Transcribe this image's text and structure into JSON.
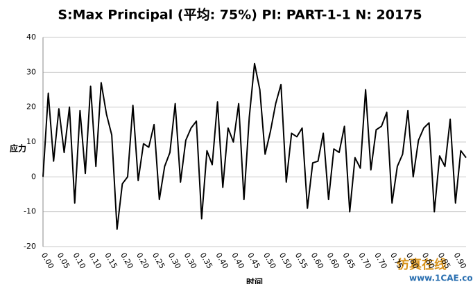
{
  "chart_data": {
    "type": "line",
    "title": "S:Max Principal (平均: 75%) PI: PART-1-1 N: 20175",
    "y_label": "应力",
    "x_label": "时间",
    "watermark": [
      "仿真在线",
      "www.1CAE.com"
    ],
    "categories": [
      "0.00",
      null,
      null,
      "0.05",
      null,
      null,
      "0.10",
      null,
      null,
      "0.10",
      null,
      null,
      "0.15",
      null,
      null,
      "0.20",
      null,
      null,
      "0.20",
      null,
      null,
      "0.25",
      null,
      null,
      "0.30",
      null,
      null,
      "0.30",
      null,
      null,
      "0.35",
      null,
      null,
      "0.40",
      null,
      null,
      "0.40",
      null,
      null,
      "0.45",
      null,
      null,
      "0.50",
      null,
      null,
      "0.50",
      null,
      null,
      "0.55",
      null,
      null,
      "0.60",
      null,
      null,
      "0.60",
      null,
      null,
      "0.65",
      null,
      null,
      "0.70",
      null,
      null,
      "0.70",
      null,
      null,
      "0.75",
      null,
      null,
      "0.80",
      null,
      null,
      "0.80",
      null,
      null,
      "0.85",
      null,
      null,
      "0.90",
      null,
      null
    ],
    "series": [
      {
        "color": "#000000",
        "values": [
          0,
          24,
          4.5,
          19.5,
          7,
          20,
          -7.5,
          19,
          1,
          26,
          3,
          27,
          18,
          12,
          -15,
          -2,
          0,
          20.5,
          -1,
          9.5,
          8.5,
          15,
          -6.5,
          3,
          7,
          21,
          -1.5,
          10.5,
          14,
          16,
          -12,
          7.5,
          3.5,
          21.5,
          -3,
          14,
          10,
          21,
          -6.5,
          17,
          32.5,
          25,
          6.5,
          13,
          21,
          26.5,
          -1.5,
          12.5,
          11.5,
          14,
          -9,
          4,
          4.5,
          12.5,
          -6.5,
          8,
          7,
          14.5,
          -10,
          5.5,
          2.5,
          25,
          2,
          13.5,
          14.5,
          18.5,
          -7.5,
          3,
          6.5,
          19,
          0,
          10.5,
          14,
          15.5,
          -10,
          6,
          3,
          16.5,
          -7.5,
          7.5,
          5.5
        ]
      }
    ],
    "ylim": [
      -20,
      40
    ],
    "yticks": [
      -20,
      -10,
      0,
      10,
      20,
      30,
      40
    ],
    "grid": true
  }
}
